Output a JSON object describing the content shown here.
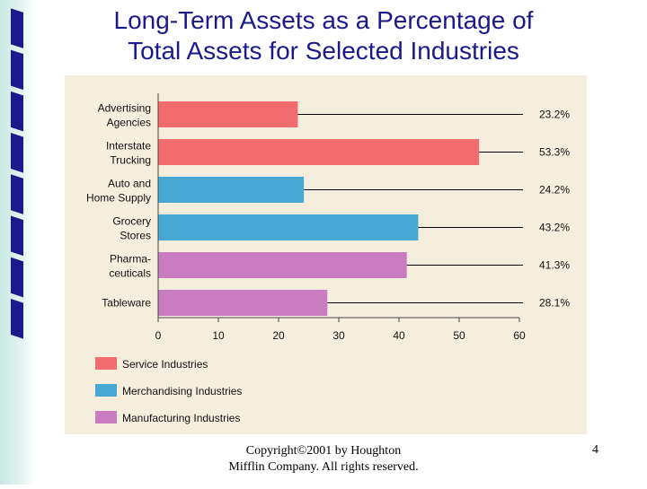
{
  "slide": {
    "title_line1": "Long-Term Assets as a Percentage of",
    "title_line2": "Total Assets for Selected Industries",
    "footer_line1": "Copyright©2001 by Houghton",
    "footer_line2": "Mifflin Company. All rights reserved.",
    "page_number": "4"
  },
  "chart_data": {
    "type": "bar",
    "orientation": "horizontal",
    "categories": [
      [
        "Advertising",
        "Agencies"
      ],
      [
        "Interstate",
        "Trucking"
      ],
      [
        "Auto and",
        "Home Supply"
      ],
      [
        "Grocery",
        "Stores"
      ],
      [
        "Pharma-",
        "ceuticals"
      ],
      [
        "Tableware"
      ]
    ],
    "values": [
      23.2,
      53.3,
      24.2,
      43.2,
      41.3,
      28.1
    ],
    "value_labels": [
      "23.2%",
      "53.3%",
      "24.2%",
      "43.2%",
      "41.3%",
      "28.1%"
    ],
    "bar_group": [
      0,
      0,
      1,
      1,
      2,
      2
    ],
    "xlim": [
      0,
      60
    ],
    "xticks": [
      0,
      10,
      20,
      30,
      40,
      50,
      60
    ],
    "grid": false,
    "legend_position": "bottom-left",
    "legend": [
      {
        "name": "Service Industries",
        "color": "#f26b6e"
      },
      {
        "name": "Merchandising Industries",
        "color": "#48a8d4"
      },
      {
        "name": "Manufacturing Industries",
        "color": "#c97cc0"
      }
    ]
  }
}
